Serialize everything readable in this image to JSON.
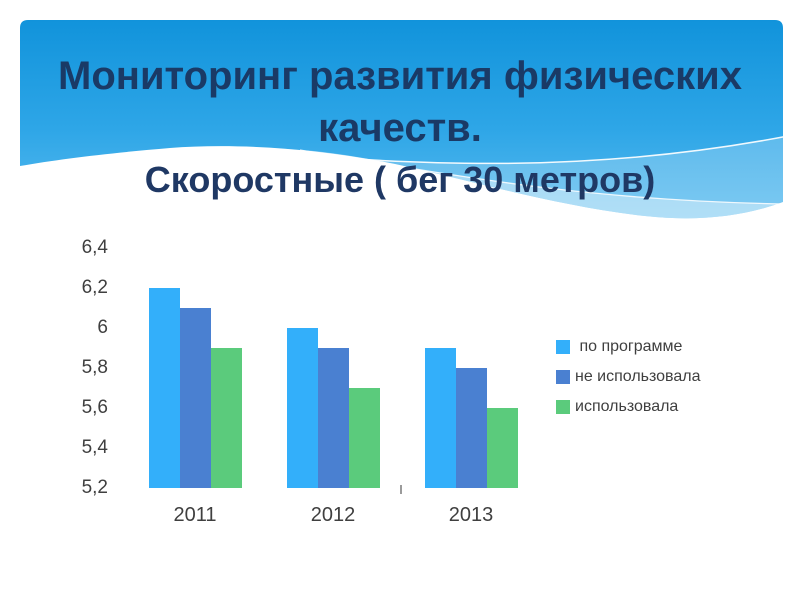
{
  "slide": {
    "title_line1": "Мониторинг развития физических",
    "title_line2": "качеств.",
    "subtitle": "Скоростные ( бег 30 метров)"
  },
  "theme": {
    "banner_top": "#1193DB",
    "banner_mid": "#2EA6E7",
    "banner_bottom": "#59BBEF",
    "title_color": "#1A3A66",
    "subtitle_color": "#1F3864",
    "chart_text_color": "#3F3F3F"
  },
  "chart_data": {
    "type": "bar",
    "title": "",
    "xlabel": "",
    "ylabel": "",
    "categories": [
      "2011",
      "2012",
      "2013"
    ],
    "series": [
      {
        "name": " по программе",
        "values": [
          6.2,
          6.0,
          5.9
        ],
        "color": "#33AFFA"
      },
      {
        "name": "не использовала",
        "values": [
          6.1,
          5.9,
          5.8
        ],
        "color": "#4A80D1"
      },
      {
        "name": "использовала",
        "values": [
          5.9,
          5.7,
          5.6
        ],
        "color": "#5BCB7C"
      }
    ],
    "ylim": [
      5.2,
      6.4
    ],
    "ytick_step": 0.2,
    "yticks": [
      "6,4",
      "6,2",
      "6",
      "5,8",
      "5,6",
      "5,4",
      "5,2"
    ],
    "grid": false,
    "legend_position": "right"
  }
}
